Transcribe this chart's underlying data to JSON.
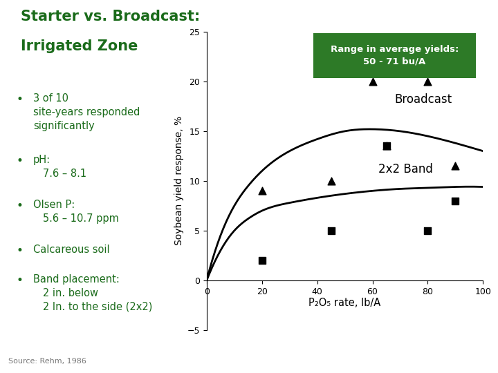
{
  "title_line1": "Starter vs. Broadcast:",
  "title_line2": "Irrigated Zone",
  "title_color": "#1a6b1a",
  "bg_color": "#ffffff",
  "bullet_color": "#1a6b1a",
  "source_text": "Source: Rehm, 1986",
  "xlabel": "P₂O₅ rate, lb/A",
  "ylabel": "Soybean yield response, %",
  "xlim": [
    0,
    100
  ],
  "ylim": [
    -5,
    25
  ],
  "xticks": [
    0,
    20,
    40,
    60,
    80,
    100
  ],
  "yticks": [
    -5,
    0,
    5,
    10,
    15,
    20,
    25
  ],
  "broadcast_scatter_x": [
    20,
    45,
    60,
    65,
    80,
    90
  ],
  "broadcast_scatter_y": [
    9.0,
    10.0,
    20.0,
    13.5,
    20.0,
    11.5
  ],
  "band_scatter_x": [
    20,
    45,
    65,
    80,
    90
  ],
  "band_scatter_y": [
    2.0,
    5.0,
    13.5,
    5.0,
    8.0
  ],
  "broadcast_curve_x": [
    0,
    5,
    10,
    15,
    20,
    30,
    40,
    50,
    60,
    70,
    80,
    90,
    100
  ],
  "broadcast_curve_y": [
    0,
    4.5,
    7.5,
    9.5,
    11.0,
    13.0,
    14.2,
    15.0,
    15.2,
    15.0,
    14.5,
    13.8,
    13.0
  ],
  "band_curve_x": [
    0,
    5,
    10,
    15,
    20,
    30,
    40,
    50,
    60,
    70,
    80,
    90,
    100
  ],
  "band_curve_y": [
    0,
    3.0,
    5.0,
    6.2,
    7.0,
    7.8,
    8.3,
    8.7,
    9.0,
    9.2,
    9.3,
    9.4,
    9.4
  ],
  "curve_color": "#000000",
  "scatter_broadcast_marker": "^",
  "scatter_band_marker": "s",
  "scatter_color": "#000000",
  "scatter_size": 60,
  "label_broadcast": "Broadcast",
  "label_band": "2x2 Band",
  "box_bg_color": "#2d7a27",
  "box_text": "Range in average yields:\n50 - 71 bu/A",
  "box_text_color": "#ffffff",
  "bullet_points_text": [
    [
      "3 of 10",
      "site-years responded",
      "significantly"
    ],
    [
      "pH:",
      "   7.6 – 8.1"
    ],
    [
      "Olsen P:",
      "   5.6 – 10.7 ppm"
    ],
    [
      "Calcareous soil"
    ],
    [
      "Band placement:",
      "   2 in. below",
      "   2 In. to the side (2x2)"
    ]
  ]
}
